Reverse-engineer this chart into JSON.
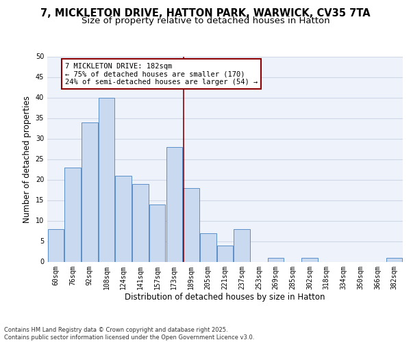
{
  "title_line1": "7, MICKLETON DRIVE, HATTON PARK, WARWICK, CV35 7TA",
  "title_line2": "Size of property relative to detached houses in Hatton",
  "xlabel": "Distribution of detached houses by size in Hatton",
  "ylabel": "Number of detached properties",
  "categories": [
    "60sqm",
    "76sqm",
    "92sqm",
    "108sqm",
    "124sqm",
    "141sqm",
    "157sqm",
    "173sqm",
    "189sqm",
    "205sqm",
    "221sqm",
    "237sqm",
    "253sqm",
    "269sqm",
    "285sqm",
    "302sqm",
    "318sqm",
    "334sqm",
    "350sqm",
    "366sqm",
    "382sqm"
  ],
  "values": [
    8,
    23,
    34,
    40,
    21,
    19,
    14,
    28,
    18,
    7,
    4,
    8,
    0,
    1,
    0,
    1,
    0,
    0,
    0,
    0,
    1
  ],
  "bar_color": "#c9d9f0",
  "bar_edge_color": "#5b8fc9",
  "vline_color": "#8b0000",
  "annotation_text": "7 MICKLETON DRIVE: 182sqm\n← 75% of detached houses are smaller (170)\n24% of semi-detached houses are larger (54) →",
  "annotation_box_edge_color": "#8b0000",
  "annotation_box_facecolor": "#ffffff",
  "ylim": [
    0,
    50
  ],
  "yticks": [
    0,
    5,
    10,
    15,
    20,
    25,
    30,
    35,
    40,
    45,
    50
  ],
  "grid_color": "#d0d8e8",
  "background_color": "#eef2fb",
  "footer_text": "Contains HM Land Registry data © Crown copyright and database right 2025.\nContains public sector information licensed under the Open Government Licence v3.0.",
  "title_fontsize": 10.5,
  "subtitle_fontsize": 9.5,
  "axis_label_fontsize": 8.5,
  "tick_fontsize": 7,
  "annotation_fontsize": 7.5,
  "footer_fontsize": 6
}
